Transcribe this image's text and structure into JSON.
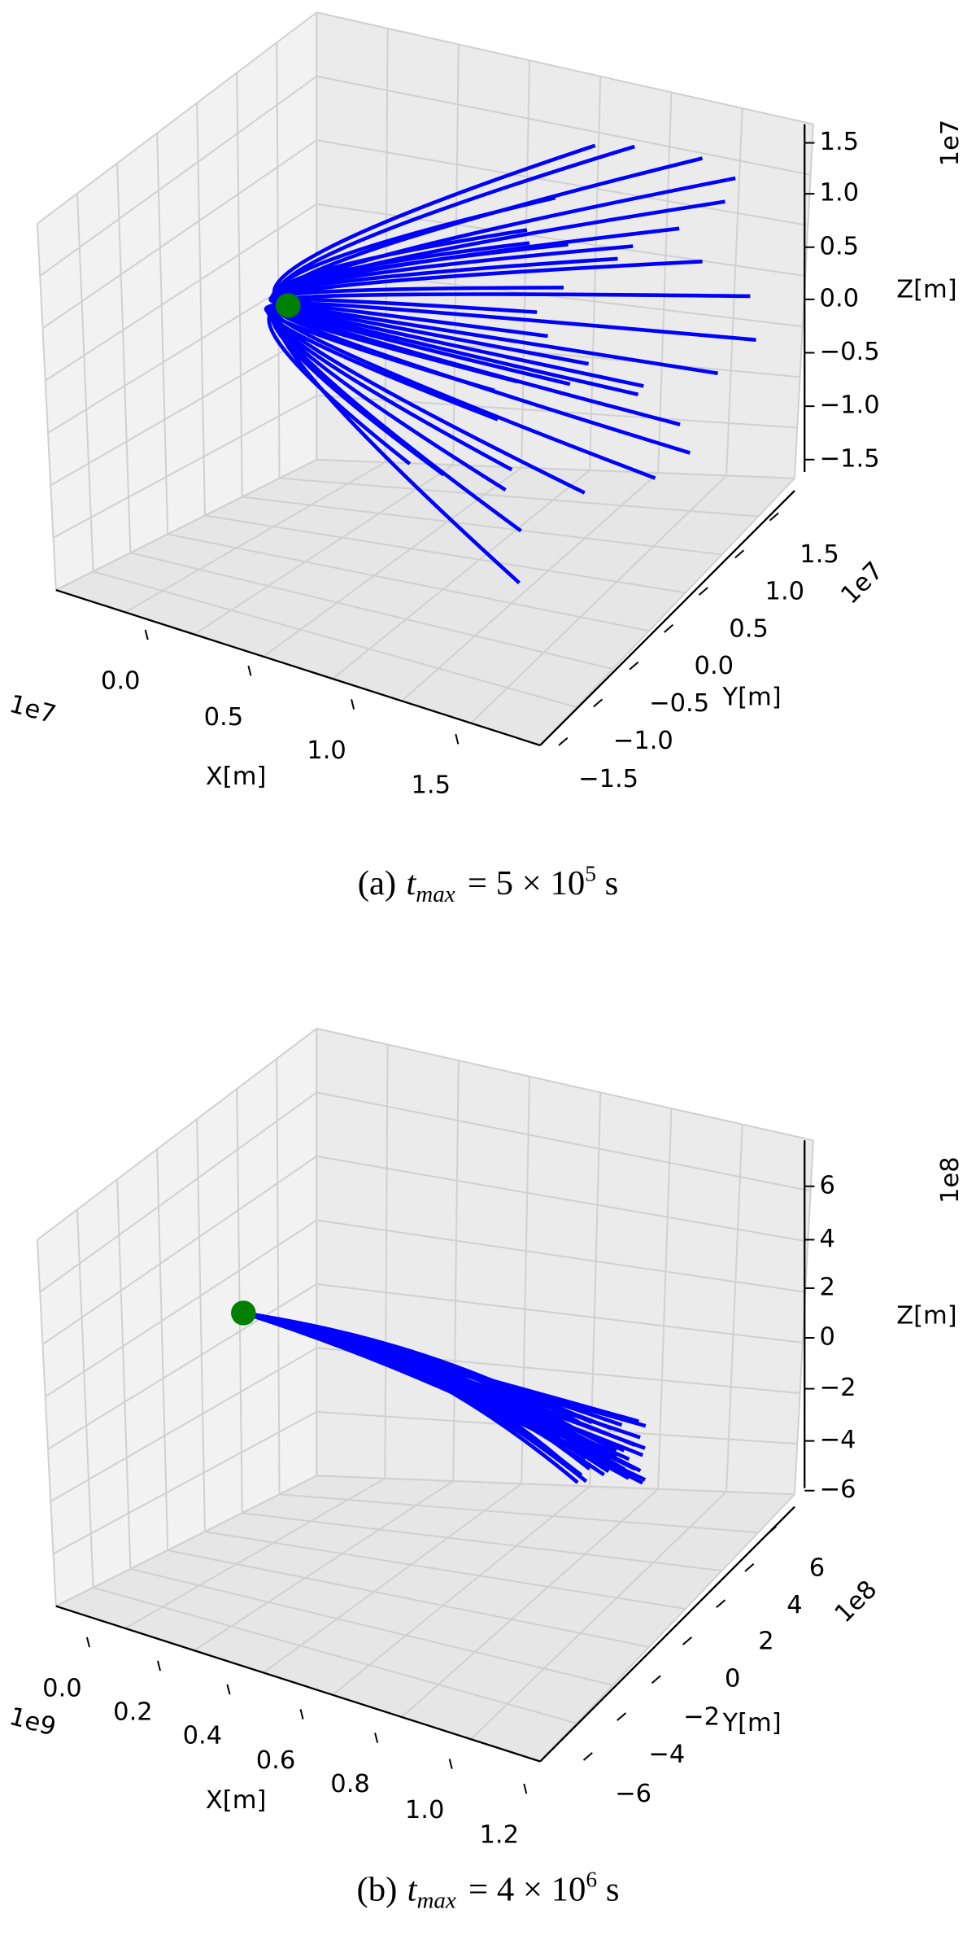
{
  "panels": [
    {
      "z_axis": {
        "label": "Z[m]",
        "offset": "1e7",
        "ticks": [
          "1.5",
          "1.0",
          "0.5",
          "0.0",
          "−0.5",
          "−1.0",
          "−1.5"
        ]
      },
      "y_axis": {
        "label": "Y[m]",
        "offset": "1e7",
        "ticks": [
          "1.5",
          "1.0",
          "0.5",
          "0.0",
          "−0.5",
          "−1.0",
          "−1.5"
        ]
      },
      "x_axis": {
        "label": "X[m]",
        "offset": "1e7",
        "ticks": [
          "0.0",
          "0.5",
          "1.0",
          "1.5"
        ]
      },
      "caption": {
        "label": "(a)",
        "symbol": "t",
        "subscript": "max",
        "relation": "= 5 × 10",
        "exponent": "5",
        "unit": "s"
      }
    },
    {
      "z_axis": {
        "label": "Z[m]",
        "offset": "1e8",
        "ticks": [
          "6",
          "4",
          "2",
          "0",
          "−2",
          "−4",
          "−6"
        ]
      },
      "y_axis": {
        "label": "Y[m]",
        "offset": "1e8",
        "ticks": [
          "6",
          "4",
          "2",
          "0",
          "−2",
          "−4",
          "−6"
        ]
      },
      "x_axis": {
        "label": "X[m]",
        "offset": "1e9",
        "ticks": [
          "0.0",
          "0.2",
          "0.4",
          "0.6",
          "0.8",
          "1.0",
          "1.2"
        ]
      },
      "caption": {
        "label": "(b)",
        "symbol": "t",
        "subscript": "max",
        "relation": "= 4 × 10",
        "exponent": "6",
        "unit": "s"
      }
    }
  ]
}
